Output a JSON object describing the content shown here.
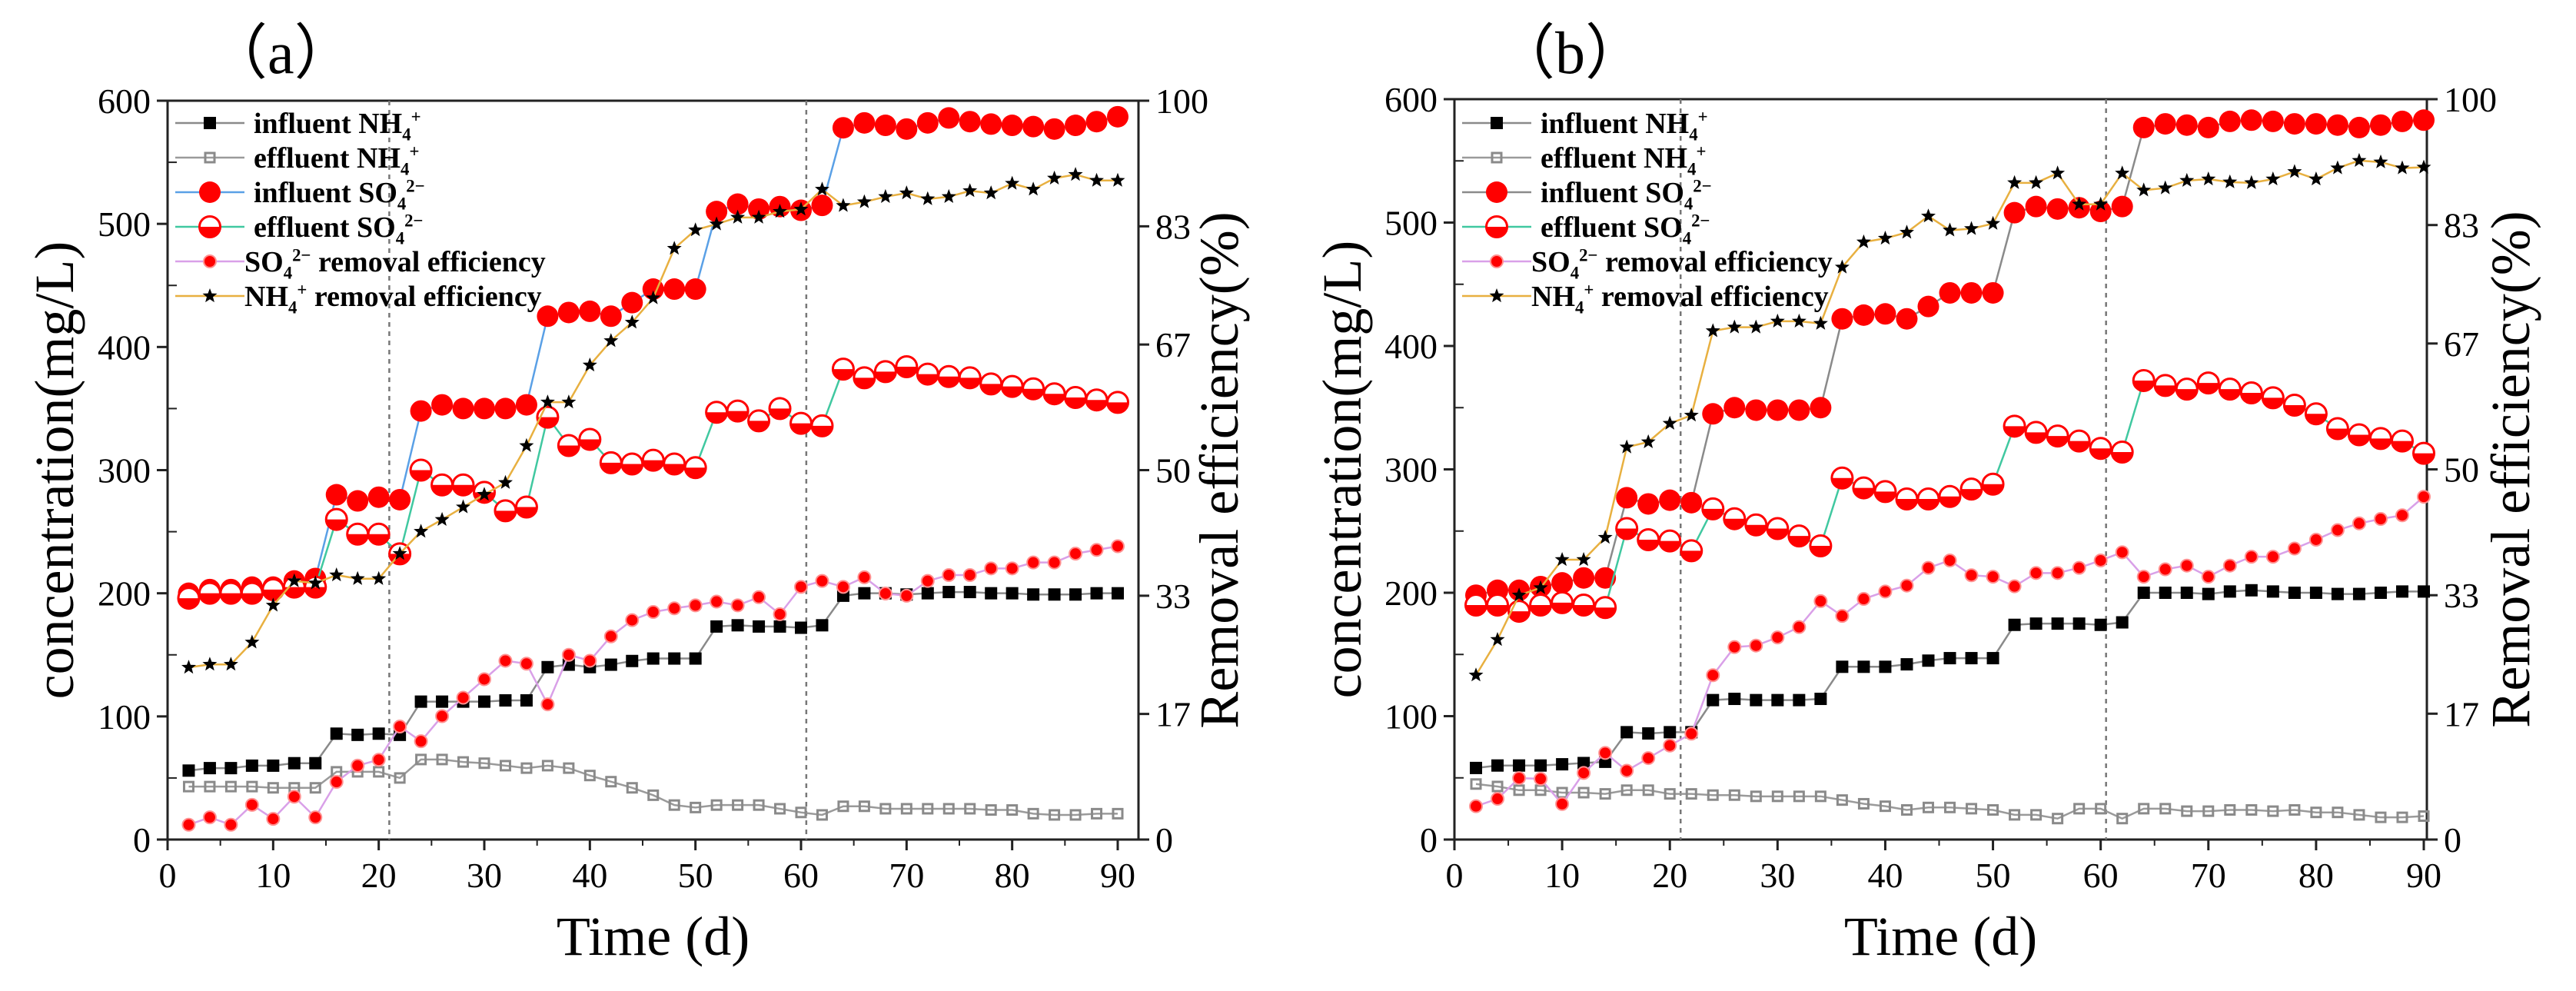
{
  "chart_data": [
    {
      "type": "line",
      "panel_label": "（a）",
      "xlabel": "Time (d)",
      "ylabel": "concentration(mg/L)",
      "ylabel_right": "Removal efficiency(%)",
      "xlim": [
        0,
        90
      ],
      "ylim": [
        0,
        600
      ],
      "ylim_right": [
        0,
        100
      ],
      "xticks": [
        0,
        10,
        20,
        30,
        40,
        50,
        60,
        70,
        80,
        90
      ],
      "yticks": [
        0,
        100,
        200,
        300,
        400,
        500,
        600
      ],
      "yticks_right": [
        0,
        17,
        33,
        50,
        67,
        83,
        100
      ],
      "vlines": [
        21,
        60.5
      ],
      "legend_position": "top-left",
      "x": [
        2,
        4,
        6,
        8,
        10,
        12,
        14,
        16,
        18,
        20,
        22,
        24,
        26,
        28,
        30,
        32,
        34,
        36,
        38,
        40,
        42,
        44,
        46,
        48,
        50,
        52,
        54,
        56,
        58,
        60,
        62,
        64,
        66,
        68,
        70,
        72,
        74,
        76,
        78,
        80,
        82,
        84,
        86,
        88,
        90
      ],
      "series": [
        {
          "name": "influent NH4+",
          "label": {
            "base": "influent NH",
            "sub": "4",
            "sup": "+",
            "tail": ""
          },
          "axis": "left",
          "marker": "square",
          "color": "#000000",
          "line": "#8a8a8a",
          "values": [
            56,
            58,
            58,
            60,
            60,
            62,
            62,
            86,
            85,
            86,
            85,
            112,
            112,
            112,
            112,
            113,
            113,
            140,
            142,
            140,
            142,
            145,
            147,
            147,
            147,
            173,
            174,
            173,
            173,
            172,
            174,
            198,
            200,
            200,
            199,
            200,
            201,
            201,
            200,
            200,
            199,
            199,
            199,
            200,
            200
          ]
        },
        {
          "name": "effluent NH4+",
          "label": {
            "base": "effluent NH",
            "sub": "4",
            "sup": "+",
            "tail": ""
          },
          "axis": "left",
          "marker": "xsquare",
          "color": "#8a8a8a",
          "line": "#9a9a9a",
          "values": [
            43,
            43,
            43,
            43,
            42,
            42,
            42,
            55,
            55,
            55,
            50,
            65,
            65,
            63,
            62,
            60,
            58,
            60,
            58,
            52,
            47,
            42,
            36,
            28,
            26,
            28,
            28,
            28,
            25,
            22,
            20,
            27,
            27,
            25,
            25,
            25,
            25,
            25,
            24,
            24,
            21,
            20,
            20,
            21,
            21
          ]
        },
        {
          "name": "influent SO42-",
          "label": {
            "base": "influent SO",
            "sub": "4",
            "sup": "2−",
            "tail": ""
          },
          "axis": "left",
          "marker": "bigcircle",
          "color": "#ff0000",
          "line": "#5aa0e6",
          "values": [
            200,
            203,
            203,
            205,
            205,
            210,
            212,
            280,
            275,
            278,
            276,
            348,
            353,
            350,
            350,
            350,
            353,
            425,
            428,
            429,
            425,
            436,
            447,
            447,
            447,
            510,
            516,
            512,
            514,
            511,
            515,
            578,
            582,
            580,
            577,
            582,
            586,
            583,
            581,
            580,
            579,
            577,
            580,
            583,
            587
          ]
        },
        {
          "name": "effluent SO42-",
          "label": {
            "base": "effluent SO",
            "sub": "4",
            "sup": "2−",
            "tail": ""
          },
          "axis": "left",
          "marker": "halfcircle",
          "color": "#ff0000",
          "line": "#40c8a0",
          "values": [
            196,
            200,
            200,
            200,
            203,
            205,
            205,
            260,
            248,
            248,
            232,
            300,
            288,
            288,
            282,
            267,
            270,
            343,
            320,
            325,
            306,
            305,
            308,
            305,
            302,
            347,
            348,
            340,
            350,
            338,
            336,
            382,
            375,
            380,
            384,
            378,
            376,
            375,
            370,
            368,
            366,
            362,
            359,
            357,
            355
          ]
        },
        {
          "name": "SO42- removal efficiency",
          "label": {
            "base": "SO",
            "sub": "4",
            "sup": "2−",
            "tail": " removal efficiency"
          },
          "axis": "right",
          "marker": "smallcircle",
          "color": "#ff0000",
          "line": "#d9a0e8",
          "values": [
            2,
            3,
            2,
            4.7,
            2.8,
            5.8,
            3,
            7.8,
            10,
            10.8,
            15.3,
            13.3,
            16.7,
            19.2,
            21.7,
            24.2,
            23.8,
            18.3,
            25,
            24.2,
            27.5,
            29.7,
            30.8,
            31.3,
            31.7,
            32.2,
            31.7,
            32.8,
            30.5,
            34.2,
            35,
            34.2,
            35.5,
            33.3,
            33,
            35,
            35.8,
            35.8,
            36.7,
            36.7,
            37.5,
            37.5,
            38.7,
            39.2,
            39.7
          ]
        },
        {
          "name": "NH4+ removal efficiency",
          "label": {
            "base": "NH",
            "sub": "4",
            "sup": "+",
            "tail": " removal efficiency"
          },
          "axis": "right",
          "marker": "star",
          "color": "#000000",
          "line": "#e8b040",
          "values": [
            23.3,
            23.7,
            23.7,
            26.7,
            31.7,
            35,
            34.7,
            35.8,
            35.3,
            35.3,
            38.7,
            41.7,
            43.3,
            45,
            46.7,
            48.3,
            53.3,
            59.2,
            59.2,
            64.2,
            67.5,
            70,
            73.3,
            80,
            82.5,
            83.3,
            84.2,
            84.2,
            85,
            85.3,
            88,
            85.8,
            86.3,
            87,
            87.5,
            86.7,
            87,
            87.8,
            87.5,
            88.8,
            88,
            89.5,
            90,
            89.2,
            89.2
          ]
        }
      ]
    },
    {
      "type": "line",
      "panel_label": "（b）",
      "xlabel": "Time (d)",
      "ylabel": "concentration(mg/L)",
      "ylabel_right": "Removal efficiency(%)",
      "xlim": [
        0,
        90
      ],
      "ylim": [
        0,
        600
      ],
      "ylim_right": [
        0,
        100
      ],
      "xticks": [
        0,
        10,
        20,
        30,
        40,
        50,
        60,
        70,
        80,
        90
      ],
      "yticks": [
        0,
        100,
        200,
        300,
        400,
        500,
        600
      ],
      "yticks_right": [
        0,
        17,
        33,
        50,
        67,
        83,
        100
      ],
      "vlines": [
        21,
        60.5
      ],
      "legend_position": "top-left",
      "x": [
        2,
        4,
        6,
        8,
        10,
        12,
        14,
        16,
        18,
        20,
        22,
        24,
        26,
        28,
        30,
        32,
        34,
        36,
        38,
        40,
        42,
        44,
        46,
        48,
        50,
        52,
        54,
        56,
        58,
        60,
        62,
        64,
        66,
        68,
        70,
        72,
        74,
        76,
        78,
        80,
        82,
        84,
        86,
        88,
        90
      ],
      "series": [
        {
          "name": "influent NH4+",
          "label": {
            "base": "influent NH",
            "sub": "4",
            "sup": "+",
            "tail": ""
          },
          "axis": "left",
          "marker": "square",
          "color": "#000000",
          "line": "#8a8a8a",
          "values": [
            58,
            60,
            60,
            60,
            61,
            62,
            63,
            87,
            86,
            87,
            87,
            113,
            114,
            113,
            113,
            113,
            114,
            140,
            140,
            140,
            142,
            145,
            147,
            147,
            147,
            174,
            175,
            175,
            175,
            174,
            176,
            200,
            200,
            200,
            199,
            201,
            202,
            201,
            200,
            200,
            199,
            199,
            200,
            201,
            201
          ]
        },
        {
          "name": "effluent NH4+",
          "label": {
            "base": "effluent NH",
            "sub": "4",
            "sup": "+",
            "tail": ""
          },
          "axis": "left",
          "marker": "xsquare",
          "color": "#8a8a8a",
          "line": "#9a9a9a",
          "values": [
            45,
            43,
            40,
            40,
            38,
            38,
            37,
            40,
            40,
            37,
            37,
            36,
            36,
            35,
            35,
            35,
            35,
            32,
            29,
            27,
            24,
            26,
            26,
            25,
            24,
            20,
            20,
            17,
            25,
            25,
            17,
            25,
            25,
            23,
            23,
            24,
            24,
            23,
            24,
            22,
            22,
            20,
            18,
            18,
            19
          ]
        },
        {
          "name": "influent SO42-",
          "label": {
            "base": "influent SO",
            "sub": "4",
            "sup": "2−",
            "tail": ""
          },
          "axis": "left",
          "marker": "bigcircle",
          "color": "#ff0000",
          "line": "#8a8a8a",
          "values": [
            198,
            202,
            202,
            205,
            208,
            212,
            212,
            277,
            272,
            275,
            273,
            345,
            350,
            348,
            348,
            348,
            350,
            422,
            425,
            426,
            422,
            432,
            443,
            443,
            443,
            508,
            513,
            511,
            512,
            509,
            513,
            577,
            580,
            579,
            577,
            582,
            583,
            582,
            580,
            580,
            579,
            577,
            579,
            582,
            583
          ]
        },
        {
          "name": "effluent SO42-",
          "label": {
            "base": "effluent SO",
            "sub": "4",
            "sup": "2−",
            "tail": ""
          },
          "axis": "left",
          "marker": "halfcircle",
          "color": "#ff0000",
          "line": "#40c8a0",
          "values": [
            190,
            190,
            185,
            190,
            192,
            190,
            188,
            252,
            243,
            242,
            234,
            268,
            260,
            255,
            252,
            246,
            238,
            293,
            285,
            282,
            276,
            276,
            278,
            284,
            288,
            335,
            330,
            327,
            323,
            317,
            314,
            372,
            368,
            365,
            370,
            365,
            362,
            358,
            352,
            345,
            333,
            328,
            325,
            323,
            313
          ]
        },
        {
          "name": "SO42- removal efficiency",
          "label": {
            "base": "SO",
            "sub": "4",
            "sup": "2−",
            "tail": " removal efficiency"
          },
          "axis": "right",
          "marker": "smallcircle",
          "color": "#ff0000",
          "line": "#d9a0e8",
          "values": [
            4.5,
            5.5,
            8.3,
            8.2,
            4.8,
            9,
            11.7,
            9.3,
            11,
            12.7,
            14.3,
            22.2,
            26,
            26.2,
            27.3,
            28.7,
            32.2,
            30.2,
            32.5,
            33.5,
            34.3,
            36.7,
            37.7,
            35.7,
            35.5,
            34.2,
            36,
            36,
            36.7,
            37.7,
            38.8,
            35.5,
            36.5,
            37,
            35.5,
            37,
            38.2,
            38.2,
            39.3,
            40.5,
            41.8,
            42.7,
            43.3,
            43.8,
            46.3
          ]
        },
        {
          "name": "NH4+ removal efficiency",
          "label": {
            "base": "NH",
            "sub": "4",
            "sup": "+",
            "tail": " removal efficiency"
          },
          "axis": "right",
          "marker": "star",
          "color": "#000000",
          "line": "#e8b040",
          "values": [
            22.2,
            27,
            33,
            34,
            37.8,
            37.8,
            40.8,
            53,
            53.7,
            56.2,
            57.3,
            68.7,
            69.2,
            69.2,
            70,
            70,
            69.7,
            77.3,
            80.7,
            81.2,
            82,
            84.2,
            82.3,
            82.5,
            83.2,
            88.7,
            88.7,
            90,
            85.8,
            85.8,
            90,
            87.7,
            88,
            89,
            89.2,
            88.8,
            88.7,
            89.2,
            90.2,
            89.2,
            90.7,
            91.7,
            91.5,
            90.7,
            90.8
          ]
        }
      ]
    }
  ]
}
